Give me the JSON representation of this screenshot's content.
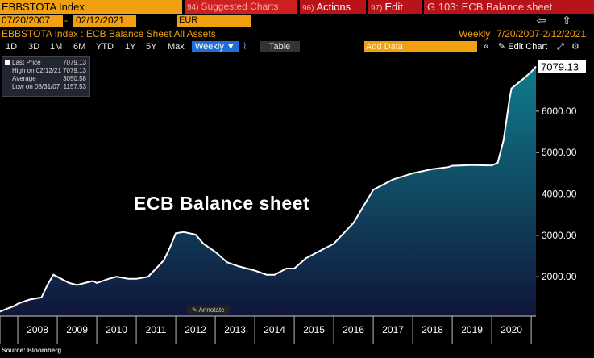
{
  "toolbar": {
    "ticker": "EBBSTOTA Index",
    "suggested_num": "94)",
    "suggested": "Suggested Charts",
    "actions_num": "96)",
    "actions": "Actions",
    "edit_num": "97)",
    "edit": "Edit",
    "sheet_label": "G 103: ECB Balance sheet"
  },
  "range": {
    "start": "07/20/2007",
    "dash": "-",
    "end": "02/12/2021",
    "currency": "EUR",
    "nav": "⇦ ⇧"
  },
  "header": {
    "chart_title": "EBBSTOTA Index : ECB Balance Sheet All Assets",
    "period_label": "Weekly",
    "period_range": "7/20/2007-2/12/2021"
  },
  "tools": {
    "items": [
      "1D",
      "3D",
      "1M",
      "6M",
      "YTD",
      "1Y",
      "5Y",
      "Max"
    ],
    "weekly": "Weekly ▼",
    "table": "Table",
    "add_data": "Add Data",
    "arrows": "«",
    "edit_chart": "✎ Edit Chart"
  },
  "legend": {
    "rows": [
      {
        "key": "Last Price",
        "value": "7079.13"
      },
      {
        "key": "High on 02/12/21",
        "value": "7079.13"
      },
      {
        "key": "Average",
        "value": "3050.58"
      },
      {
        "key": "Low on 08/31/07",
        "value": "1157.53"
      }
    ]
  },
  "annotate": "✎ Annotate",
  "source": "Source: Bloomberg",
  "colors": {
    "accent": "#f0a010",
    "red": "#b8121a",
    "area_top": "#0f7c8c",
    "area_bottom": "#10163a"
  },
  "chart_data": {
    "type": "area",
    "title": "ECB Balance sheet",
    "xlabel": "",
    "ylabel": "",
    "last_value_label": "7079.13",
    "xlim": [
      2007.55,
      2021.12
    ],
    "ylim": [
      1050,
      7400
    ],
    "x_ticks": [
      2008,
      2009,
      2010,
      2011,
      2012,
      2013,
      2014,
      2015,
      2016,
      2017,
      2018,
      2019,
      2020
    ],
    "y_ticks": [
      "2000.00",
      "3000.00",
      "4000.00",
      "5000.00",
      "6000.00"
    ],
    "x": [
      2007.55,
      2007.7,
      2007.9,
      2008.0,
      2008.3,
      2008.6,
      2008.75,
      2008.9,
      2009.0,
      2009.3,
      2009.5,
      2009.7,
      2009.9,
      2010.0,
      2010.3,
      2010.5,
      2010.8,
      2011.0,
      2011.3,
      2011.5,
      2011.7,
      2011.85,
      2012.0,
      2012.2,
      2012.5,
      2012.7,
      2013.0,
      2013.3,
      2013.6,
      2014.0,
      2014.3,
      2014.5,
      2014.8,
      2015.0,
      2015.3,
      2015.6,
      2016.0,
      2016.5,
      2017.0,
      2017.5,
      2018.0,
      2018.5,
      2018.9,
      2019.0,
      2019.5,
      2019.9,
      2020.0,
      2020.15,
      2020.3,
      2020.45,
      2020.5,
      2020.8,
      2021.0,
      2021.12
    ],
    "values": [
      1158,
      1220,
      1290,
      1350,
      1450,
      1500,
      1800,
      2050,
      2000,
      1850,
      1800,
      1850,
      1900,
      1850,
      1950,
      2000,
      1950,
      1950,
      2000,
      2200,
      2400,
      2700,
      3050,
      3080,
      3020,
      2800,
      2600,
      2350,
      2250,
      2150,
      2050,
      2050,
      2200,
      2200,
      2450,
      2600,
      2800,
      3300,
      4100,
      4350,
      4500,
      4600,
      4650,
      4680,
      4700,
      4690,
      4690,
      4750,
      5300,
      6300,
      6550,
      6780,
      6950,
      7079
    ]
  }
}
